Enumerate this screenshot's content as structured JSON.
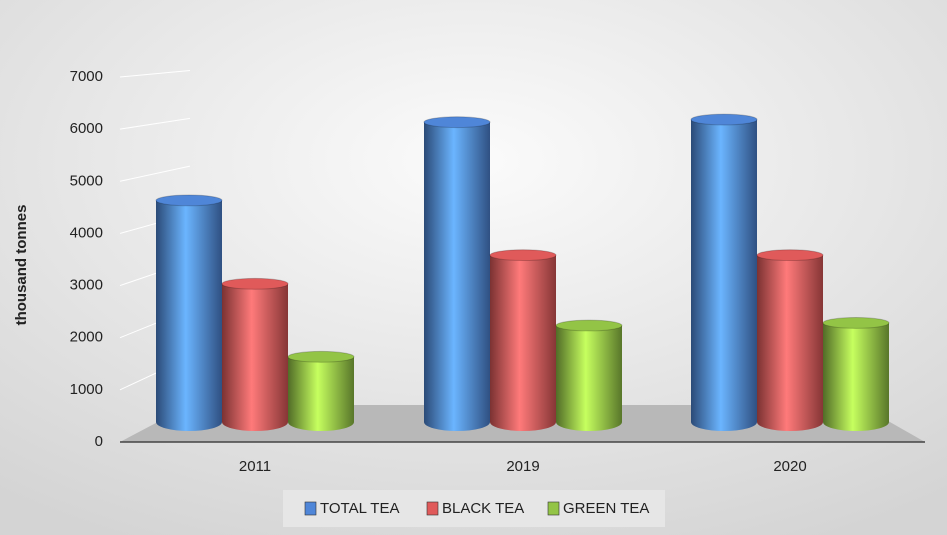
{
  "chart_data": {
    "type": "bar",
    "y_label": "thousand tonnes",
    "categories": [
      "2011",
      "2019",
      "2020"
    ],
    "series": [
      {
        "name": "TOTAL TEA",
        "color": "#4f86d8",
        "values": [
          4250,
          5750,
          5800
        ]
      },
      {
        "name": "BLACK TEA",
        "color": "#e05a5a",
        "values": [
          2650,
          3200,
          3200
        ]
      },
      {
        "name": "GREEN TEA",
        "color": "#93c446",
        "values": [
          1250,
          1850,
          1900
        ]
      }
    ],
    "ylim": [
      0,
      7000
    ],
    "yticks": [
      0,
      1000,
      2000,
      3000,
      4000,
      5000,
      6000,
      7000
    ],
    "grid": true
  }
}
